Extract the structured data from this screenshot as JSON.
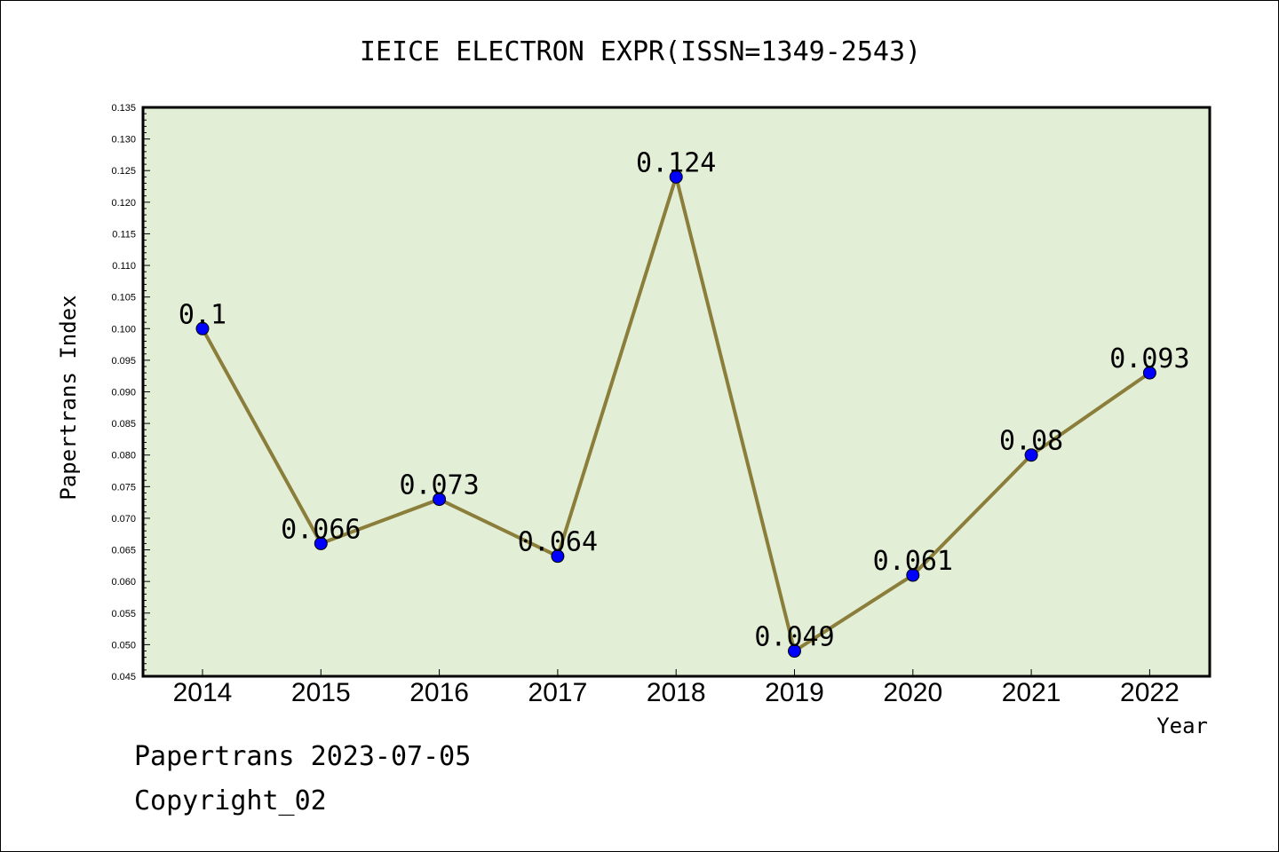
{
  "chart_data": {
    "type": "line",
    "title": "IEICE ELECTRON EXPR(ISSN=1349-2543)",
    "xlabel": "Year",
    "ylabel": "Papertrans Index",
    "categories": [
      "2014",
      "2015",
      "2016",
      "2017",
      "2018",
      "2019",
      "2020",
      "2021",
      "2022"
    ],
    "series": [
      {
        "values": [
          0.1,
          0.066,
          0.073,
          0.064,
          0.124,
          0.049,
          0.061,
          0.08,
          0.093
        ],
        "labels": [
          "0.1",
          "0.066",
          "0.073",
          "0.064",
          "0.124",
          "0.049",
          "0.061",
          "0.08",
          "0.093"
        ]
      }
    ],
    "ylim": [
      0.045,
      0.135
    ],
    "yticks": [
      "0.045",
      "0.050",
      "0.055",
      "0.060",
      "0.065",
      "0.070",
      "0.075",
      "0.080",
      "0.085",
      "0.090",
      "0.095",
      "0.100",
      "0.105",
      "0.110",
      "0.115",
      "0.120",
      "0.125",
      "0.130",
      "0.135"
    ],
    "grid": false,
    "legend": "none",
    "colors": {
      "plot_background": "#e2efd6",
      "line": "#8b7d3a",
      "marker": "#0000ff"
    }
  },
  "footer": {
    "line1": "Papertrans 2023-07-05",
    "line2": "Copyright_02"
  }
}
